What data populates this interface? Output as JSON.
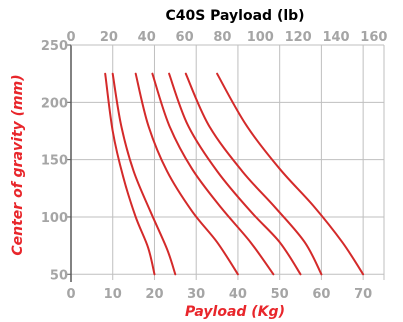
{
  "chart_data": {
    "type": "line",
    "title": "C40S Payload (lb)",
    "xlabel": "Payload (Kg)",
    "ylabel": "Center of gravity (mm)",
    "xlim": [
      0,
      75
    ],
    "ylim": [
      45,
      250
    ],
    "x_ticks": [
      "0",
      "10",
      "20",
      "30",
      "40",
      "50",
      "60",
      "70"
    ],
    "x_tick_values": [
      0,
      10,
      20,
      30,
      40,
      50,
      60,
      70
    ],
    "y_ticks": [
      "50",
      "100",
      "150",
      "200",
      "250"
    ],
    "y_tick_values": [
      50,
      100,
      150,
      200,
      250
    ],
    "x2_ticks": [
      "0",
      "20",
      "40",
      "60",
      "80",
      "100",
      "120",
      "140",
      "160"
    ],
    "x2_tick_values_lb": [
      0,
      20,
      40,
      60,
      80,
      100,
      120,
      140,
      160
    ],
    "x2_lb_per_kg": 2.2046,
    "grid": true,
    "series": [
      {
        "points": [
          [
            8.2,
            225
          ],
          [
            10,
            175
          ],
          [
            12.5,
            135
          ],
          [
            15.5,
            100
          ],
          [
            18.5,
            73
          ],
          [
            20,
            50
          ]
        ]
      },
      {
        "points": [
          [
            10,
            225
          ],
          [
            12,
            180
          ],
          [
            15,
            140
          ],
          [
            19,
            105
          ],
          [
            23,
            72
          ],
          [
            25,
            50
          ]
        ]
      },
      {
        "points": [
          [
            15.5,
            225
          ],
          [
            18.5,
            180
          ],
          [
            23,
            140
          ],
          [
            29,
            105
          ],
          [
            35,
            78
          ],
          [
            40,
            50
          ]
        ]
      },
      {
        "points": [
          [
            19.5,
            225
          ],
          [
            23.5,
            180
          ],
          [
            29,
            142
          ],
          [
            36,
            108
          ],
          [
            43,
            78
          ],
          [
            48.5,
            50
          ]
        ]
      },
      {
        "points": [
          [
            23.5,
            225
          ],
          [
            28,
            180
          ],
          [
            35,
            140
          ],
          [
            43,
            105
          ],
          [
            50,
            78
          ],
          [
            55,
            50
          ]
        ]
      },
      {
        "points": [
          [
            27.5,
            225
          ],
          [
            33,
            180
          ],
          [
            41,
            140
          ],
          [
            49,
            108
          ],
          [
            56,
            78
          ],
          [
            60,
            50
          ]
        ]
      },
      {
        "points": [
          [
            35,
            225
          ],
          [
            42,
            180
          ],
          [
            50,
            142
          ],
          [
            58,
            110
          ],
          [
            65,
            78
          ],
          [
            70,
            50
          ]
        ]
      }
    ],
    "colors": {
      "line": "#d42a2a",
      "axis_label": "#e8262b",
      "tick": "#a5a5a5",
      "grid": "#bfbfbf",
      "axis": "#595959",
      "title": "#000000"
    }
  }
}
